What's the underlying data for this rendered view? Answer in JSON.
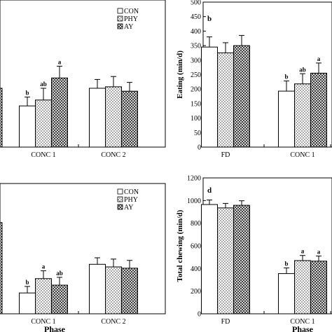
{
  "chart_data": [
    {
      "type": "bar",
      "panel_letter": "",
      "ylabel": "",
      "xlabel": "",
      "categories": [
        "",
        "CONC 1",
        "CONC 2"
      ],
      "legend": {
        "placement": "top-right",
        "entries": [
          "CON",
          "PHY",
          "AY"
        ]
      },
      "series": [
        {
          "name": "CON",
          "values": [
            null,
            28,
            40
          ]
        },
        {
          "name": "PHY",
          "values": [
            null,
            32,
            41
          ]
        },
        {
          "name": "AY",
          "values": [
            null,
            47,
            38
          ]
        }
      ],
      "errors": [
        [
          null,
          6,
          6
        ],
        [
          null,
          8,
          7
        ],
        [
          null,
          8,
          6
        ]
      ],
      "letters": [
        [
          null,
          "b",
          ""
        ],
        [
          null,
          "ab",
          ""
        ],
        [
          null,
          "a",
          ""
        ]
      ],
      "partial_bar": {
        "category_index": 0,
        "value": 40
      },
      "ylim": [
        0,
        100
      ],
      "grid": false
    },
    {
      "type": "bar",
      "panel_letter": "b",
      "ylabel": "Eating (min/d)",
      "xlabel": "",
      "categories": [
        "FD",
        "CONC 1"
      ],
      "series": [
        {
          "name": "CON",
          "values": [
            345,
            193
          ]
        },
        {
          "name": "PHY",
          "values": [
            325,
            218
          ]
        },
        {
          "name": "AY",
          "values": [
            350,
            255
          ]
        }
      ],
      "errors": [
        [
          35,
          35
        ],
        [
          35,
          35
        ],
        [
          35,
          35
        ]
      ],
      "letters": [
        [
          "",
          "b"
        ],
        [
          "",
          "ab"
        ],
        [
          "",
          "a"
        ]
      ],
      "yticks": [
        0,
        50,
        100,
        150,
        200,
        250,
        300,
        350,
        400,
        450,
        500
      ],
      "ylim": [
        0,
        500
      ],
      "grid": false
    },
    {
      "type": "bar",
      "panel_letter": "",
      "ylabel": "",
      "xlabel": "Phase",
      "categories": [
        "",
        "CONC 1",
        "CONC 2"
      ],
      "legend": {
        "placement": "top-right",
        "entries": [
          "CON",
          "PHY",
          "AY"
        ]
      },
      "series": [
        {
          "name": "CON",
          "values": [
            null,
            16,
            38
          ]
        },
        {
          "name": "PHY",
          "values": [
            null,
            27,
            36
          ]
        },
        {
          "name": "AY",
          "values": [
            null,
            22,
            35
          ]
        }
      ],
      "errors": [
        [
          null,
          5,
          5
        ],
        [
          null,
          6,
          6
        ],
        [
          null,
          6,
          6
        ]
      ],
      "letters": [
        [
          null,
          "b",
          ""
        ],
        [
          null,
          "a",
          ""
        ],
        [
          null,
          "ab",
          ""
        ]
      ],
      "partial_bar": {
        "category_index": 0,
        "value": 70
      },
      "ylim": [
        0,
        100
      ],
      "grid": false
    },
    {
      "type": "bar",
      "panel_letter": "d",
      "ylabel": "Total chewing (min/d)",
      "xlabel": "Phase",
      "categories": [
        "FD",
        "CONC 1"
      ],
      "series": [
        {
          "name": "CON",
          "values": [
            965,
            355
          ]
        },
        {
          "name": "PHY",
          "values": [
            935,
            470
          ]
        },
        {
          "name": "AY",
          "values": [
            958,
            465
          ]
        }
      ],
      "errors": [
        [
          40,
          50
        ],
        [
          40,
          45
        ],
        [
          40,
          45
        ]
      ],
      "letters": [
        [
          "",
          "b"
        ],
        [
          "",
          "a"
        ],
        [
          "",
          "a"
        ]
      ],
      "yticks": [
        0,
        200,
        400,
        600,
        800,
        1000,
        1200
      ],
      "ylim": [
        0,
        1200
      ],
      "grid": false
    }
  ]
}
